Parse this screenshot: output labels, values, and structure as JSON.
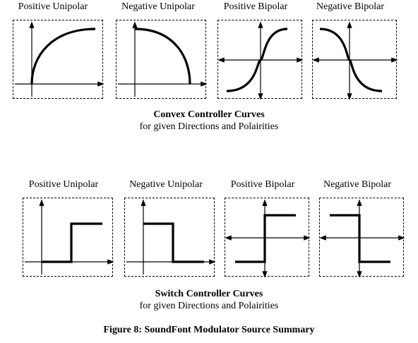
{
  "convex": {
    "titles": [
      "Positive Unipolar",
      "Negative Unipolar",
      "Positive Bipolar",
      "Negative Bipolar"
    ],
    "caption_bold": "Convex Controller Curves",
    "caption_sub": "for given Directions and Polairities"
  },
  "switch": {
    "titles": [
      "Positive Unipolar",
      "Negative Unipolar",
      "Positive Bipolar",
      "Negative Bipolar"
    ],
    "caption_bold": "Switch Controller Curves",
    "caption_sub": "for given Directions and Polairities"
  },
  "figure_caption": "Figure 8: SoundFont Modulator Source Summary"
}
